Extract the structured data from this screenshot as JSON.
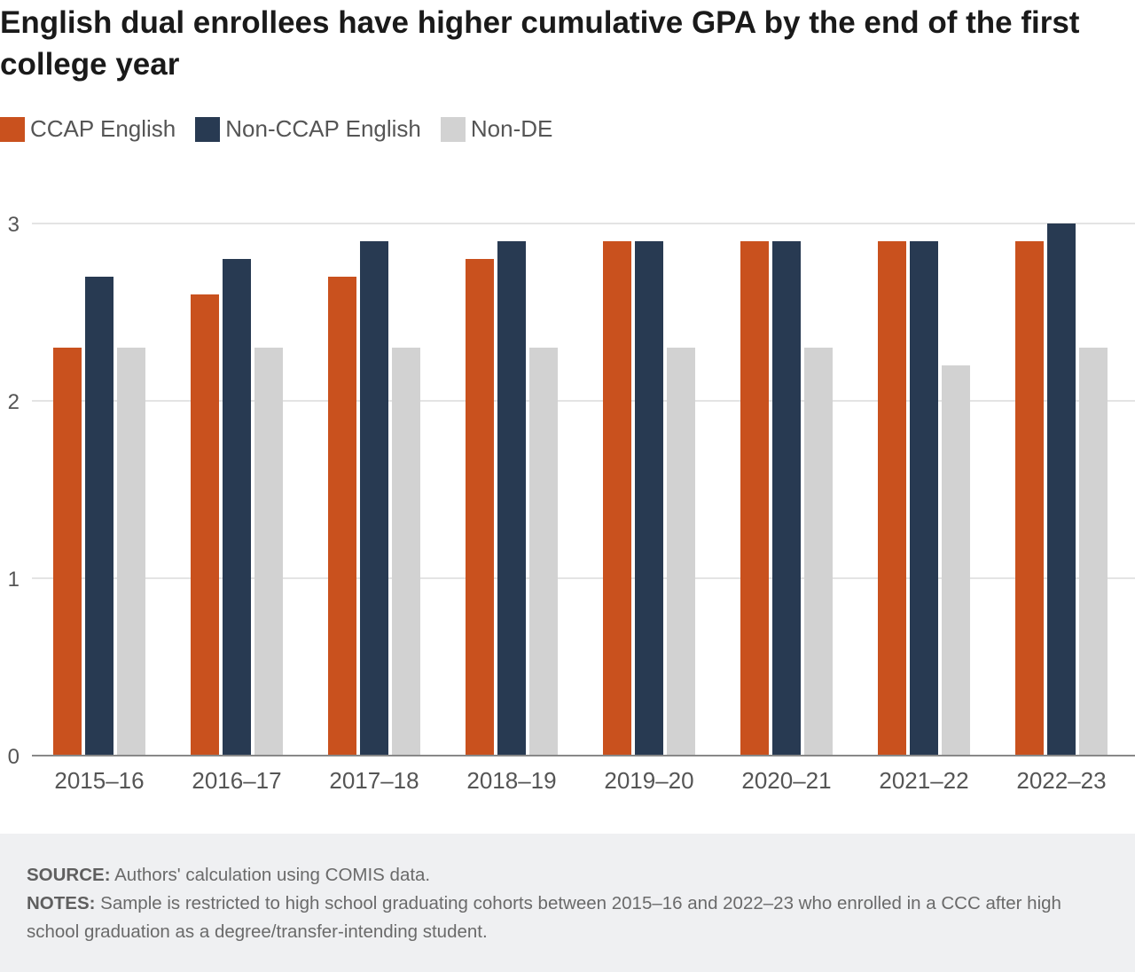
{
  "title": "English dual enrollees have higher cumulative GPA by the end of the first college year",
  "legend": [
    {
      "label": "CCAP English",
      "color": "#c9511e"
    },
    {
      "label": "Non-CCAP English",
      "color": "#283a52"
    },
    {
      "label": "Non-DE",
      "color": "#d2d2d2"
    }
  ],
  "chart_data": {
    "type": "bar",
    "categories": [
      "2015–16",
      "2016–17",
      "2017–18",
      "2018–19",
      "2019–20",
      "2020–21",
      "2021–22",
      "2022–23"
    ],
    "series": [
      {
        "name": "CCAP English",
        "color": "#c9511e",
        "values": [
          2.3,
          2.6,
          2.7,
          2.8,
          2.9,
          2.9,
          2.9,
          2.9
        ]
      },
      {
        "name": "Non-CCAP English",
        "color": "#283a52",
        "values": [
          2.7,
          2.8,
          2.9,
          2.9,
          2.9,
          2.9,
          2.9,
          3.0
        ]
      },
      {
        "name": "Non-DE",
        "color": "#d2d2d2",
        "values": [
          2.3,
          2.3,
          2.3,
          2.3,
          2.3,
          2.3,
          2.2,
          2.3
        ]
      }
    ],
    "ylim": [
      0,
      3
    ],
    "yticks": [
      "0",
      "1",
      "2",
      "3"
    ],
    "grid": true,
    "legend_position": "top-left"
  },
  "footer": {
    "source_label": "SOURCE:",
    "source_text": "Authors' calculation using COMIS data.",
    "notes_label": "NOTES:",
    "notes_text": "Sample is restricted to high school graduating cohorts between 2015–16 and 2022–23 who enrolled in a CCC after high school graduation as a degree/transfer-intending student."
  }
}
